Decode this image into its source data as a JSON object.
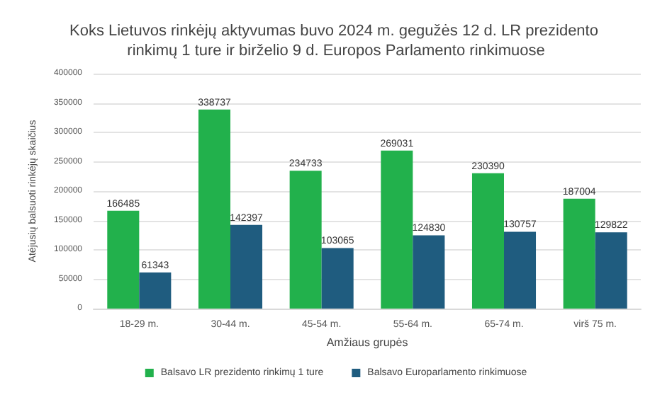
{
  "chart_data": {
    "type": "bar",
    "title": "Koks Lietuvos rinkėjų aktyvumas buvo 2024 m. gegužės 12 d. LR prezidento rinkimų 1 ture ir birželio 9 d. Europos Parlamento rinkimuose",
    "xlabel": "Amžiaus grupės",
    "ylabel": "Atėjusių balsuoti rinkėjų skaičius",
    "categories": [
      "18-29 m.",
      "30-44 m.",
      "45-54 m.",
      "55-64 m.",
      "65-74 m.",
      "virš 75 m."
    ],
    "series": [
      {
        "name": "Balsavo LR prezidento rinkimų 1 ture",
        "color": "#22b14c",
        "values": [
          166485,
          338737,
          234733,
          269031,
          230390,
          187004
        ]
      },
      {
        "name": "Balsavo Europarlamento rinkimuose",
        "color": "#1f5c7f",
        "values": [
          61343,
          142397,
          103065,
          124830,
          130757,
          129822
        ]
      }
    ],
    "ylim": [
      0,
      400000
    ],
    "yticks": [
      0,
      50000,
      100000,
      150000,
      200000,
      250000,
      300000,
      350000,
      400000
    ],
    "grid": "y",
    "legend": "bottom",
    "data_labels": true
  }
}
